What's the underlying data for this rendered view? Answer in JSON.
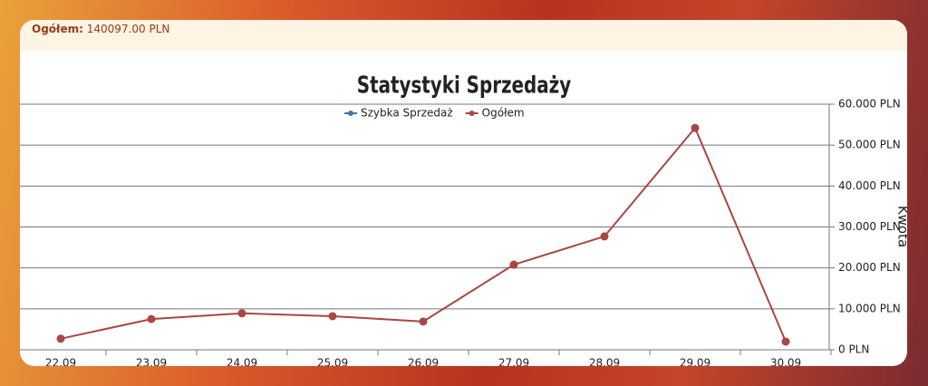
{
  "header": {
    "label": "Ogółem:",
    "value": "140097.00 PLN"
  },
  "chart_data": {
    "type": "line",
    "title": "Statystyki Sprzedaży",
    "y_axis_label": "Kwota",
    "categories": [
      "22.09",
      "23.09",
      "24.09",
      "25.09",
      "26.09",
      "27.09",
      "28.09",
      "29.09",
      "30.09"
    ],
    "series": [
      {
        "name": "Szybka Sprzedaż",
        "color": "#4572a7",
        "values": [
          null,
          null,
          null,
          null,
          null,
          null,
          null,
          null,
          null
        ]
      },
      {
        "name": "Ogółem",
        "color": "#aa4643",
        "values": [
          2700,
          7500,
          8900,
          8200,
          6900,
          20800,
          27700,
          54200,
          2000
        ]
      }
    ],
    "ylim": [
      0,
      60000
    ],
    "yticks": [
      {
        "value": 0,
        "label": "0 PLN"
      },
      {
        "value": 10000,
        "label": "10.000 PLN"
      },
      {
        "value": 20000,
        "label": "20.000 PLN"
      },
      {
        "value": 30000,
        "label": "30.000 PLN"
      },
      {
        "value": 40000,
        "label": "40.000 PLN"
      },
      {
        "value": 50000,
        "label": "50.000 PLN"
      },
      {
        "value": 60000,
        "label": "60.000 PLN"
      }
    ],
    "grid": true,
    "legend": "top"
  }
}
